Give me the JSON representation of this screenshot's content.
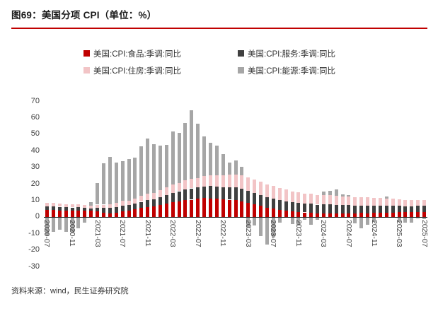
{
  "title": "图69：美国分项 CPI（单位：%）",
  "footer": {
    "source": "资料来源：wind，民生证券研究院"
  },
  "colors": {
    "accent_red": "#C00000",
    "food": "#C00000",
    "services": "#404040",
    "housing": "#F2C4C6",
    "energy": "#A6A6A6",
    "axis_line": "#262626"
  },
  "legend": [
    {
      "label": "美国:CPI:食品:季调:同比",
      "color": "#C00000"
    },
    {
      "label": "美国:CPI:服务:季调:同比",
      "color": "#404040"
    },
    {
      "label": "美国:CPI:住房:季调:同比",
      "color": "#F2C4C6"
    },
    {
      "label": "美国:CPI:能源:季调:同比",
      "color": "#A6A6A6"
    }
  ],
  "chart_data": {
    "type": "bar",
    "stacked": true,
    "title": "图69：美国分项 CPI（单位：%）",
    "xlabel": "",
    "ylabel": "",
    "ylim": [
      -30,
      70
    ],
    "y_ticks": [
      70,
      60,
      50,
      40,
      30,
      20,
      10,
      0,
      -10,
      -20,
      -30
    ],
    "grid": false,
    "legend_position": "top",
    "x_tick_every": 4,
    "x_tick_labels": [
      "2020-07",
      "2020-11",
      "2021-03",
      "2021-07",
      "2021-11",
      "2022-03",
      "2022-07",
      "2022-11",
      "2023-03",
      "2023-07",
      "2023-11",
      "2024-03",
      "2024-07",
      "2024-11",
      "2025-03",
      "2025-07"
    ],
    "x": [
      "2020-07",
      "2020-08",
      "2020-09",
      "2020-10",
      "2020-11",
      "2020-12",
      "2021-01",
      "2021-02",
      "2021-03",
      "2021-04",
      "2021-05",
      "2021-06",
      "2021-07",
      "2021-08",
      "2021-09",
      "2021-10",
      "2021-11",
      "2021-12",
      "2022-01",
      "2022-02",
      "2022-03",
      "2022-04",
      "2022-05",
      "2022-06",
      "2022-07",
      "2022-08",
      "2022-09",
      "2022-10",
      "2022-11",
      "2022-12",
      "2023-01",
      "2023-02",
      "2023-03",
      "2023-04",
      "2023-05",
      "2023-06",
      "2023-07",
      "2023-08",
      "2023-09",
      "2023-10",
      "2023-11",
      "2023-12",
      "2024-01",
      "2024-02",
      "2024-03",
      "2024-04",
      "2024-05",
      "2024-06",
      "2024-07",
      "2024-08",
      "2024-09",
      "2024-10",
      "2024-11",
      "2024-12",
      "2025-01",
      "2025-02",
      "2025-03",
      "2025-04",
      "2025-05",
      "2025-06",
      "2025-07"
    ],
    "series": [
      {
        "name": "美国:CPI:食品:季调:同比",
        "color": "#C00000",
        "values": [
          4.1,
          4.1,
          3.9,
          3.9,
          3.7,
          3.9,
          3.8,
          3.6,
          3.5,
          2.4,
          2.2,
          2.4,
          3.4,
          3.7,
          4.6,
          5.3,
          6.1,
          6.3,
          7.0,
          7.9,
          8.8,
          9.4,
          10.1,
          10.4,
          10.9,
          11.4,
          11.2,
          10.9,
          10.6,
          10.4,
          10.1,
          9.5,
          8.5,
          7.7,
          6.7,
          5.7,
          4.9,
          4.3,
          3.7,
          3.3,
          2.9,
          2.7,
          2.6,
          2.2,
          2.2,
          2.2,
          2.1,
          2.2,
          2.2,
          2.1,
          2.3,
          2.1,
          2.4,
          2.5,
          2.5,
          2.6,
          3.0,
          2.8,
          2.9,
          3.0,
          2.9
        ]
      },
      {
        "name": "美国:CPI:服务:季调:同比",
        "color": "#404040",
        "values": [
          2.3,
          2.3,
          2.2,
          2.0,
          2.0,
          1.9,
          1.8,
          1.6,
          2.2,
          2.9,
          3.3,
          3.5,
          3.5,
          3.3,
          3.4,
          3.8,
          4.0,
          4.2,
          4.8,
          5.2,
          5.8,
          6.1,
          6.5,
          6.8,
          6.8,
          7.1,
          7.4,
          7.5,
          7.3,
          7.5,
          7.6,
          7.6,
          7.3,
          6.8,
          6.6,
          6.2,
          6.1,
          5.9,
          5.7,
          5.5,
          5.5,
          5.3,
          5.4,
          5.2,
          5.4,
          5.3,
          5.2,
          5.0,
          4.9,
          4.8,
          4.7,
          4.8,
          4.5,
          4.4,
          4.3,
          4.1,
          3.7,
          3.6,
          3.6,
          3.6,
          3.8
        ]
      },
      {
        "name": "美国:CPI:住房:季调:同比",
        "color": "#F2C4C6",
        "values": [
          2.2,
          2.1,
          2.0,
          1.9,
          1.9,
          1.8,
          1.6,
          1.5,
          1.7,
          2.1,
          2.2,
          2.6,
          2.8,
          2.8,
          3.2,
          3.5,
          3.8,
          4.1,
          4.4,
          4.7,
          5.0,
          5.1,
          5.5,
          5.6,
          5.7,
          6.2,
          6.6,
          6.9,
          7.1,
          7.5,
          7.9,
          8.1,
          8.2,
          8.1,
          8.0,
          7.8,
          7.7,
          7.3,
          7.2,
          6.7,
          6.5,
          6.2,
          6.0,
          5.7,
          5.7,
          5.5,
          5.4,
          5.2,
          5.1,
          5.2,
          4.9,
          4.9,
          4.7,
          4.6,
          4.4,
          4.2,
          4.0,
          4.0,
          3.9,
          3.8,
          3.7
        ]
      },
      {
        "name": "美国:CPI:能源:季调:同比",
        "color": "#A6A6A6",
        "values": [
          -11.2,
          -9.0,
          -7.7,
          -9.2,
          -9.4,
          -7.0,
          -3.6,
          2.4,
          13.2,
          25.1,
          28.5,
          24.5,
          23.8,
          25.0,
          24.8,
          30.0,
          33.3,
          29.3,
          27.0,
          25.7,
          32.0,
          30.3,
          34.6,
          41.6,
          32.9,
          23.8,
          19.8,
          17.6,
          13.1,
          7.3,
          8.7,
          5.2,
          -6.4,
          -5.1,
          -11.7,
          -16.7,
          -12.5,
          -3.6,
          -0.5,
          -4.5,
          -5.4,
          -2.0,
          -4.6,
          -1.9,
          2.1,
          2.6,
          3.7,
          1.0,
          1.1,
          -4.0,
          -6.8,
          -4.9,
          -3.2,
          -0.5,
          1.0,
          -0.2,
          -3.3,
          -3.7,
          -3.5,
          -0.8,
          -1.6
        ]
      }
    ]
  }
}
